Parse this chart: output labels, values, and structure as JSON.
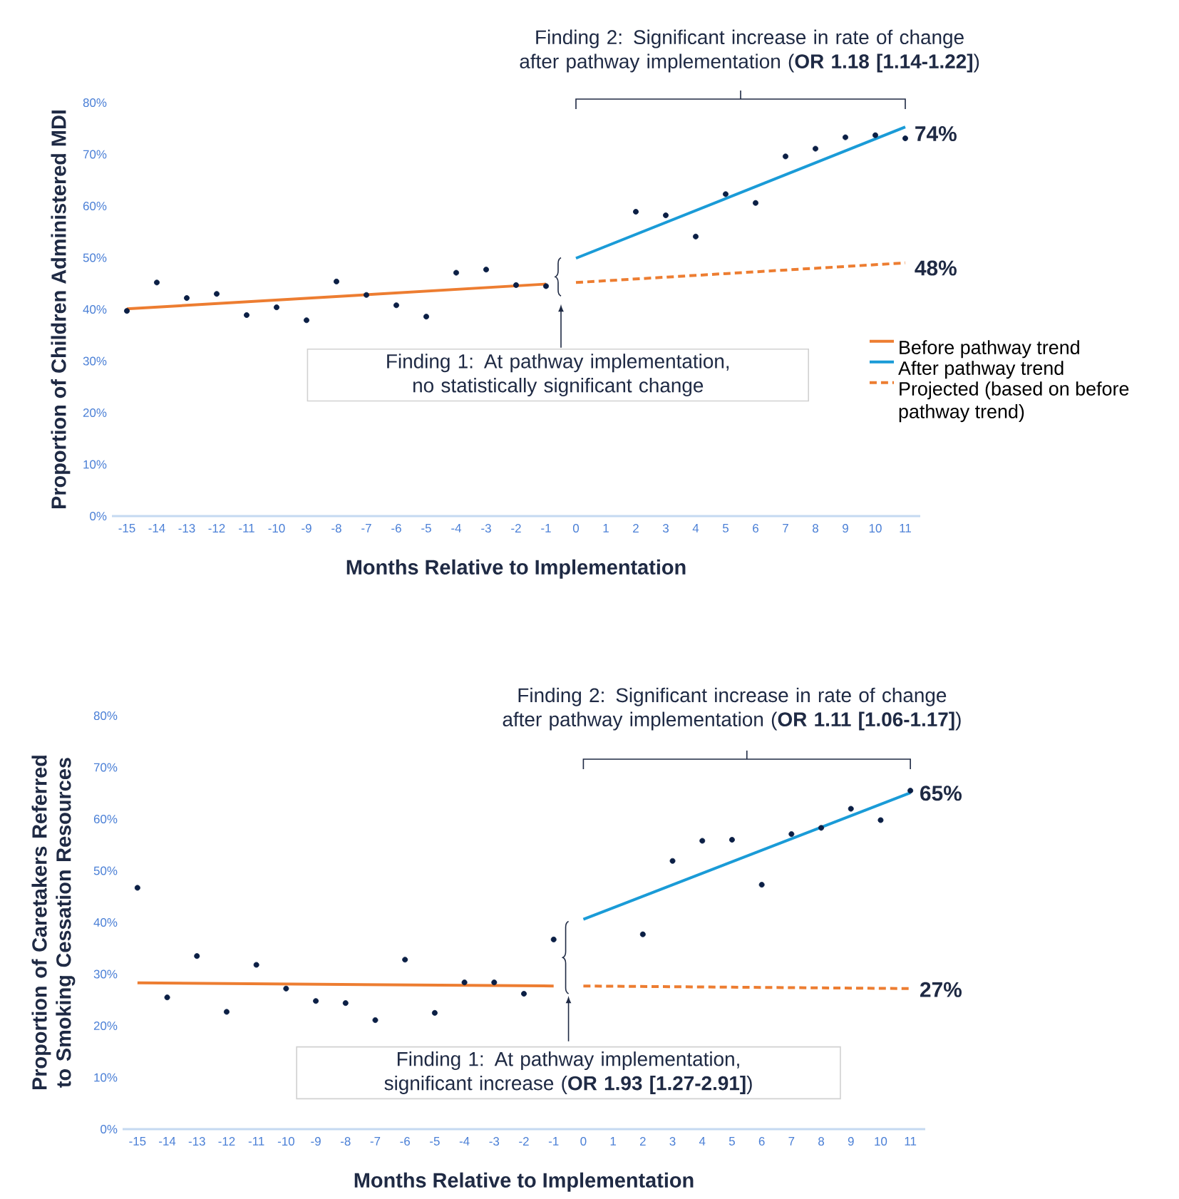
{
  "chart_data": [
    {
      "type": "line",
      "xlabel": "Months Relative to Implementation",
      "ylabel": "Proportion of Children Administered MDI",
      "xlim": [
        -15.5,
        11.5
      ],
      "ylim": [
        0,
        80
      ],
      "xticks": [
        -15,
        -14,
        -13,
        -12,
        -11,
        -10,
        -9,
        -8,
        -7,
        -6,
        -5,
        -4,
        -3,
        -2,
        -1,
        0,
        1,
        2,
        3,
        4,
        5,
        6,
        7,
        8,
        9,
        10,
        11
      ],
      "yticks": [
        {
          "value": 0,
          "label": "0%"
        },
        {
          "value": 10,
          "label": "10%"
        },
        {
          "value": 20,
          "label": "20%"
        },
        {
          "value": 30,
          "label": "30%"
        },
        {
          "value": 40,
          "label": "40%"
        },
        {
          "value": 50,
          "label": "50%"
        },
        {
          "value": 60,
          "label": "60%"
        },
        {
          "value": 70,
          "label": "70%"
        },
        {
          "value": 80,
          "label": "80%"
        }
      ],
      "legend": "right",
      "series": [
        {
          "type": "scatter",
          "color": "#0b1f45",
          "x": [
            -15,
            -14,
            -13,
            -12,
            -11,
            -10,
            -9,
            -8,
            -7,
            -6,
            -5,
            -4,
            -3,
            -2,
            -1,
            2,
            3,
            4,
            5,
            6,
            7,
            8,
            9,
            10,
            11
          ],
          "values": [
            39.7,
            45.2,
            42.2,
            43.0,
            38.9,
            40.4,
            37.9,
            45.4,
            42.8,
            40.8,
            38.6,
            47.1,
            47.7,
            44.7,
            44.5,
            58.9,
            58.2,
            54.1,
            62.3,
            60.6,
            69.6,
            71.1,
            73.3,
            73.7,
            73.1
          ]
        },
        {
          "type": "line",
          "name": "Before pathway trend",
          "color": "#ed7d31",
          "line_style": "solid",
          "x": [
            -15,
            -1
          ],
          "values": [
            40.1,
            44.9
          ]
        },
        {
          "type": "line",
          "name": "After pathway trend",
          "color": "#1a9bd7",
          "line_style": "solid",
          "x": [
            0,
            11
          ],
          "values": [
            49.9,
            75.3
          ]
        },
        {
          "type": "line",
          "name": "Projected (based on before pathway trend)",
          "color": "#ed7d31",
          "line_style": "dashed",
          "x": [
            0,
            11
          ],
          "values": [
            45.2,
            49.0
          ]
        }
      ],
      "annotations": [
        "Finding 2: Significant increase in rate of change after pathway implementation (**OR 1.18 [1.14-1.22]**)",
        "Finding 1: At pathway implementation, no statistically significant change",
        "74%",
        "48%"
      ]
    },
    {
      "type": "line",
      "xlabel": "Months Relative to Implementation",
      "ylabel": "Proportion of Caretakers Referred to Smoking Cessation Resources",
      "xlim": [
        -15.5,
        11.5
      ],
      "ylim": [
        0,
        80
      ],
      "xticks": [
        -15,
        -14,
        -13,
        -12,
        -11,
        -10,
        -9,
        -8,
        -7,
        -6,
        -5,
        -4,
        -3,
        -2,
        -1,
        0,
        1,
        2,
        3,
        4,
        5,
        6,
        7,
        8,
        9,
        10,
        11
      ],
      "yticks": [
        {
          "value": 0,
          "label": "0%"
        },
        {
          "value": 10,
          "label": "10%"
        },
        {
          "value": 20,
          "label": "20%"
        },
        {
          "value": 30,
          "label": "30%"
        },
        {
          "value": 40,
          "label": "40%"
        },
        {
          "value": 50,
          "label": "50%"
        },
        {
          "value": 60,
          "label": "60%"
        },
        {
          "value": 70,
          "label": "70%"
        },
        {
          "value": 80,
          "label": "80%"
        }
      ],
      "series": [
        {
          "type": "scatter",
          "color": "#0b1f45",
          "x": [
            -15,
            -14,
            -13,
            -12,
            -11,
            -10,
            -9,
            -8,
            -7,
            -6,
            -5,
            -4,
            -3,
            -2,
            -1,
            2,
            3,
            4,
            5,
            6,
            7,
            8,
            9,
            10,
            11
          ],
          "values": [
            46.7,
            25.5,
            33.5,
            22.7,
            31.8,
            27.2,
            24.8,
            24.4,
            21.1,
            32.8,
            22.5,
            28.4,
            28.4,
            26.2,
            36.7,
            37.7,
            51.9,
            55.8,
            56.0,
            47.3,
            57.1,
            58.3,
            62.0,
            59.8,
            65.5
          ]
        },
        {
          "type": "line",
          "color": "#ed7d31",
          "line_style": "solid",
          "x": [
            -15,
            -1
          ],
          "values": [
            28.3,
            27.7
          ]
        },
        {
          "type": "line",
          "color": "#1a9bd7",
          "line_style": "solid",
          "x": [
            0,
            11
          ],
          "values": [
            40.6,
            65.1
          ]
        },
        {
          "type": "line",
          "color": "#ed7d31",
          "line_style": "dashed",
          "x": [
            0,
            11
          ],
          "values": [
            27.7,
            27.2
          ]
        }
      ],
      "annotations": [
        "Finding 2: Significant increase in rate of change after pathway implementation (**OR 1.11 [1.06-1.17]**)",
        "Finding 1: At pathway implementation, significant increase (**OR 1.93 [1.27-2.91]**)",
        "65%",
        "27%"
      ]
    }
  ]
}
